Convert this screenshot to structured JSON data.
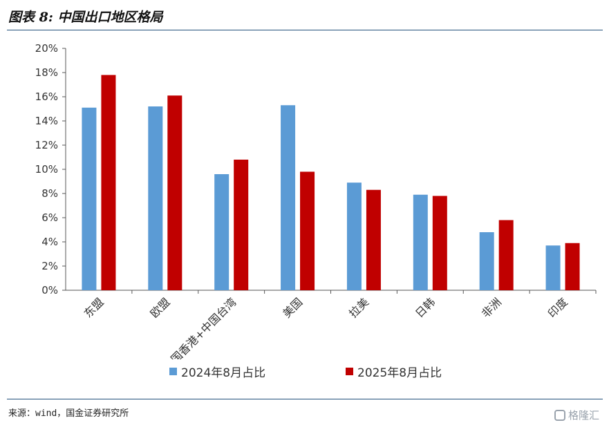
{
  "title": "图表 8:  中国出口地区格局",
  "source": "来源：wind，国金证券研究所",
  "watermark": "格隆汇",
  "chart_data": {
    "type": "bar",
    "categories": [
      "东盟",
      "欧盟",
      "中国香港+中国台湾",
      "美国",
      "拉美",
      "日韩",
      "非洲",
      "印度"
    ],
    "series": [
      {
        "name": "2024年8月占比",
        "color": "#5b9bd5",
        "values": [
          15.1,
          15.2,
          9.6,
          15.3,
          8.9,
          7.9,
          4.8,
          3.7
        ]
      },
      {
        "name": "2025年8月占比",
        "color": "#c00000",
        "values": [
          17.8,
          16.1,
          10.8,
          9.8,
          8.3,
          7.8,
          5.8,
          3.9
        ]
      }
    ],
    "ylim": [
      0,
      20
    ],
    "yticks": [
      "0%",
      "2%",
      "4%",
      "6%",
      "8%",
      "10%",
      "12%",
      "14%",
      "16%",
      "18%",
      "20%"
    ],
    "legend_position": "bottom",
    "grid": false
  }
}
